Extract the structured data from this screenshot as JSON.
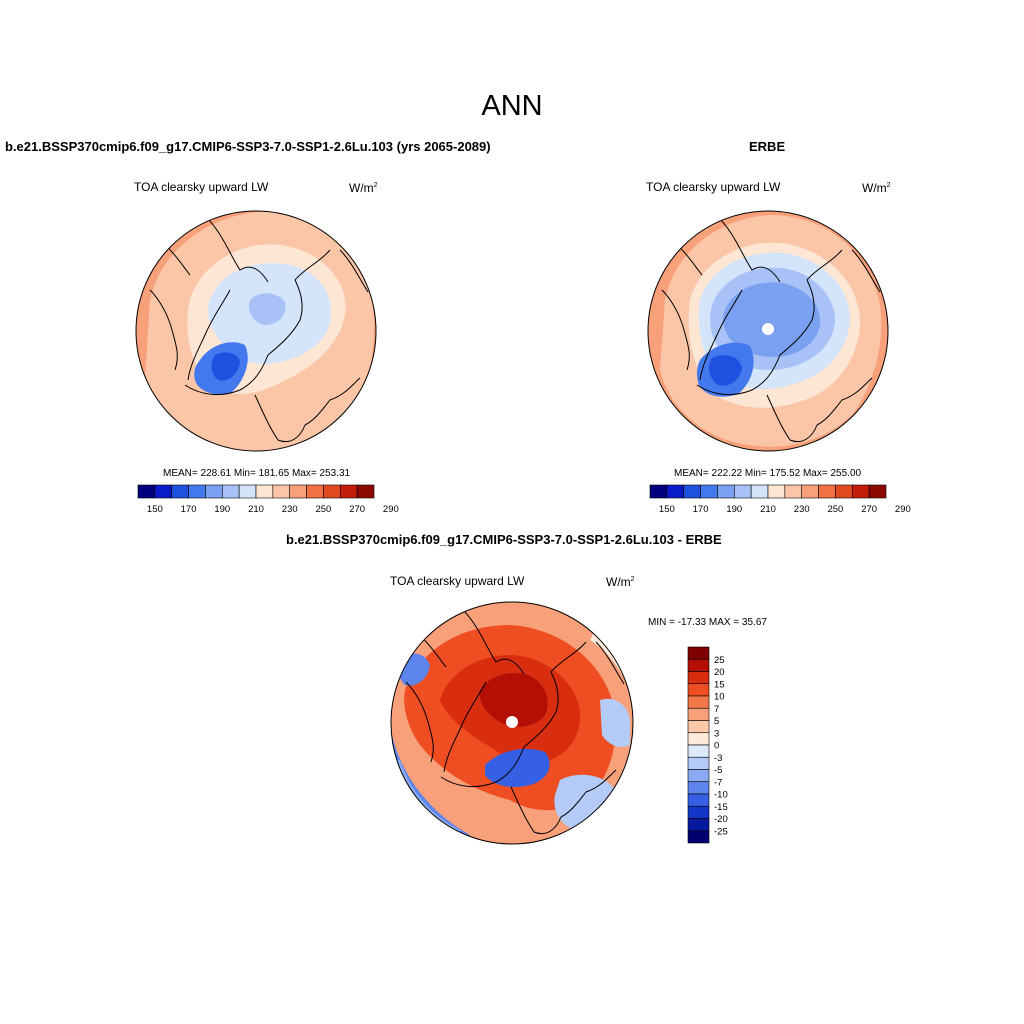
{
  "title": "ANN",
  "panels": [
    {
      "title": "b.e21.BSSP370cmip6.f09_g17.CMIP6-SSP3-7.0-SSP1-2.6Lu.103 (yrs 2065-2089)",
      "variable": "TOA clearsky upward LW",
      "units_base": "W/m",
      "units_exp": "2",
      "stats": "MEAN= 228.61  Min= 181.65  Max= 253.31",
      "colorbar_ticks": [
        "150",
        "170",
        "190",
        "210",
        "230",
        "250",
        "270",
        "290"
      ]
    },
    {
      "title": "ERBE",
      "variable": "TOA clearsky upward LW",
      "units_base": "W/m",
      "units_exp": "2",
      "stats": "MEAN= 222.22  Min= 175.52  Max= 255.00",
      "colorbar_ticks": [
        "150",
        "170",
        "190",
        "210",
        "230",
        "250",
        "270",
        "290"
      ]
    },
    {
      "title": "b.e21.BSSP370cmip6.f09_g17.CMIP6-SSP3-7.0-SSP1-2.6Lu.103 - ERBE",
      "variable": "TOA clearsky upward LW",
      "units_base": "W/m",
      "units_exp": "2",
      "stats": "MIN = -17.33 MAX =  35.67",
      "colorbar_ticks": [
        "25",
        "20",
        "15",
        "10",
        "7",
        "5",
        "3",
        "0",
        "-3",
        "-5",
        "-7",
        "-10",
        "-15",
        "-20",
        "-25"
      ]
    }
  ],
  "colors": {
    "abs_scale": [
      "#00007f",
      "#0a1cc8",
      "#1f50e0",
      "#4478ee",
      "#7aa0f2",
      "#a8c2f7",
      "#d4e4fb",
      "#fde6d4",
      "#fbc6a8",
      "#f7a07a",
      "#f27244",
      "#e04a1e",
      "#c21e0a",
      "#8a0a02"
    ],
    "diff_scale": [
      "#7f0000",
      "#b40f05",
      "#d92d10",
      "#ee4e22",
      "#f4774a",
      "#f8a07a",
      "#fbc9a8",
      "#feeada",
      "#dbe9fb",
      "#b4cbf8",
      "#8aaaf3",
      "#5e84ee",
      "#3560e4",
      "#1436c8",
      "#061aa0",
      "#000070"
    ]
  }
}
